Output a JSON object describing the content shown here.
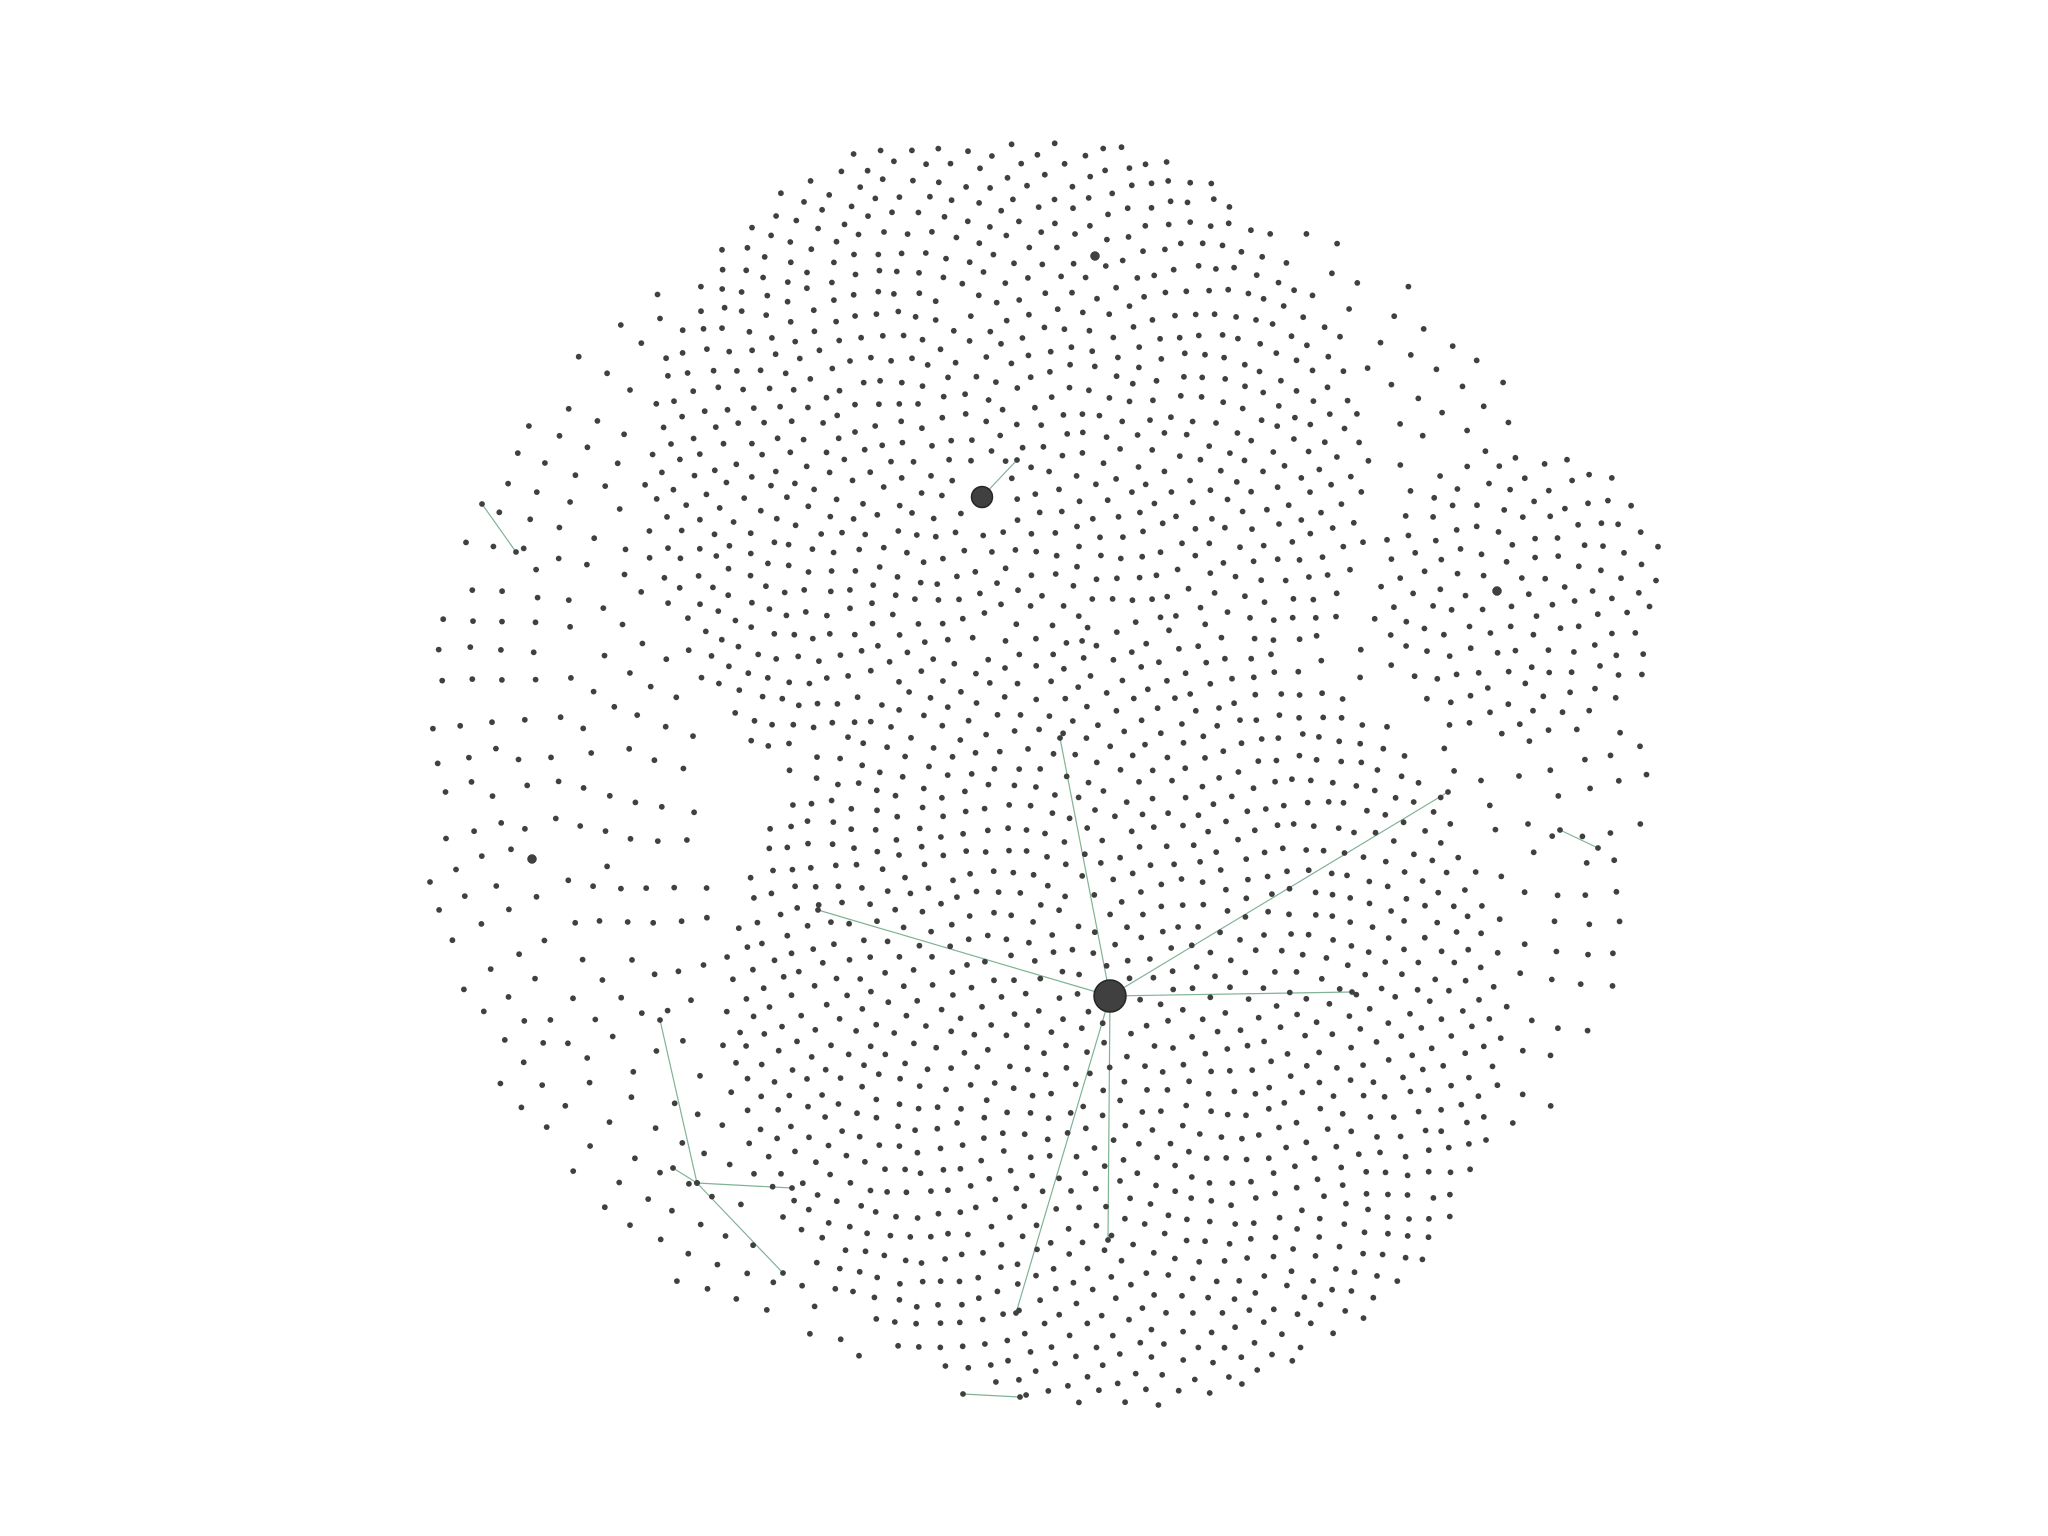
{
  "diagram": {
    "type": "force-directed-network",
    "node_color": "#404040",
    "node_stroke": "#262626",
    "edge_color": "#7fb394",
    "background": "#ffffff",
    "hub_count": 5,
    "edge_count": 14
  }
}
